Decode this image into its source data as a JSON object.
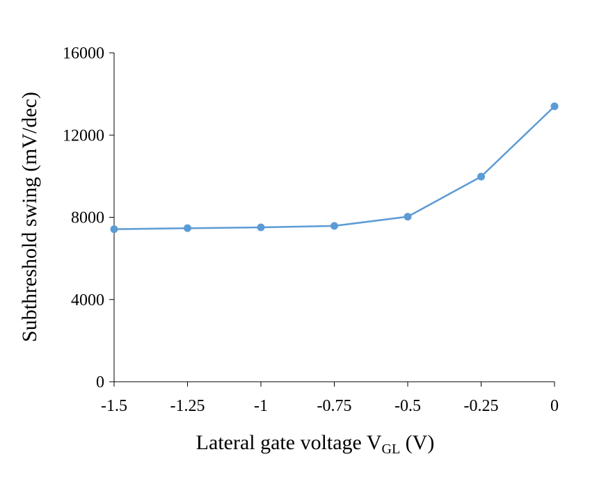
{
  "chart_data": {
    "type": "line",
    "title": "",
    "xlabel": "Lateral gate voltage V",
    "xlabel_subscript": "GL",
    "xlabel_suffix": " (V)",
    "ylabel": "Subthreshold swing (mV/dec)",
    "xlim": [
      -1.5,
      0
    ],
    "ylim": [
      0,
      16000
    ],
    "x_ticks": [
      -1.5,
      -1.25,
      -1,
      -0.75,
      -0.5,
      -0.25,
      0
    ],
    "x_tick_labels": [
      "-1.5",
      "-1.25",
      "-1",
      "-0.75",
      "-0.5",
      "-0.25",
      "0"
    ],
    "y_ticks": [
      0,
      4000,
      8000,
      12000,
      16000
    ],
    "y_tick_labels": [
      "0",
      "4000",
      "8000",
      "12000",
      "16000"
    ],
    "grid": false,
    "legend": "none",
    "series": [
      {
        "color": "#5b9bd5",
        "x": [
          -1.5,
          -1.25,
          -1,
          -0.75,
          -0.5,
          -0.25,
          0
        ],
        "y": [
          7420,
          7470,
          7510,
          7580,
          8030,
          9980,
          13400
        ]
      }
    ]
  }
}
